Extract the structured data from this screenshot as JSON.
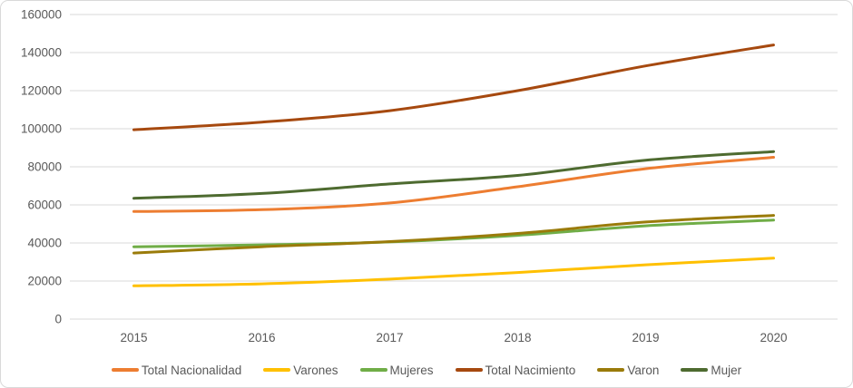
{
  "chart_data": {
    "type": "line",
    "title": "",
    "line_style": "smooth",
    "grid": true,
    "categories": [
      "2015",
      "2016",
      "2017",
      "2018",
      "2019",
      "2020"
    ],
    "series": [
      {
        "name": "Total Nacionalidad",
        "color": "#ED7D31",
        "values": [
          56500,
          57500,
          61000,
          69500,
          79000,
          85000
        ]
      },
      {
        "name": "Varones",
        "color": "#FFC000",
        "values": [
          17500,
          18500,
          21000,
          24500,
          28500,
          32000
        ]
      },
      {
        "name": "Mujeres",
        "color": "#70AD47",
        "values": [
          38000,
          39000,
          40500,
          44000,
          49000,
          52000
        ]
      },
      {
        "name": "Total Nacimiento",
        "color": "#A6490F",
        "values": [
          99500,
          103500,
          109500,
          120000,
          133000,
          144000
        ]
      },
      {
        "name": "Varon",
        "color": "#9A7B0A",
        "values": [
          34700,
          38000,
          40700,
          45000,
          51000,
          54500
        ]
      },
      {
        "name": "Mujer",
        "color": "#4E6B30",
        "values": [
          63500,
          66000,
          71000,
          75500,
          83500,
          88000
        ]
      }
    ],
    "y_axis": {
      "min": 0,
      "max": 160000,
      "step": 20000,
      "tick_labels": [
        "0",
        "20000",
        "40000",
        "60000",
        "80000",
        "100000",
        "120000",
        "140000",
        "160000"
      ]
    },
    "x_axis": {
      "tick_labels": [
        "2015",
        "2016",
        "2017",
        "2018",
        "2019",
        "2020"
      ]
    },
    "legend": {
      "position": "bottom",
      "entries": [
        "Total Nacionalidad",
        "Varones",
        "Mujeres",
        "Total Nacimiento",
        "Varon",
        "Mujer"
      ]
    },
    "colors": {
      "axis_text": "#595959",
      "gridline": "#D9D9D9",
      "border": "#D9D9D9",
      "background": "#FFFFFF"
    }
  }
}
